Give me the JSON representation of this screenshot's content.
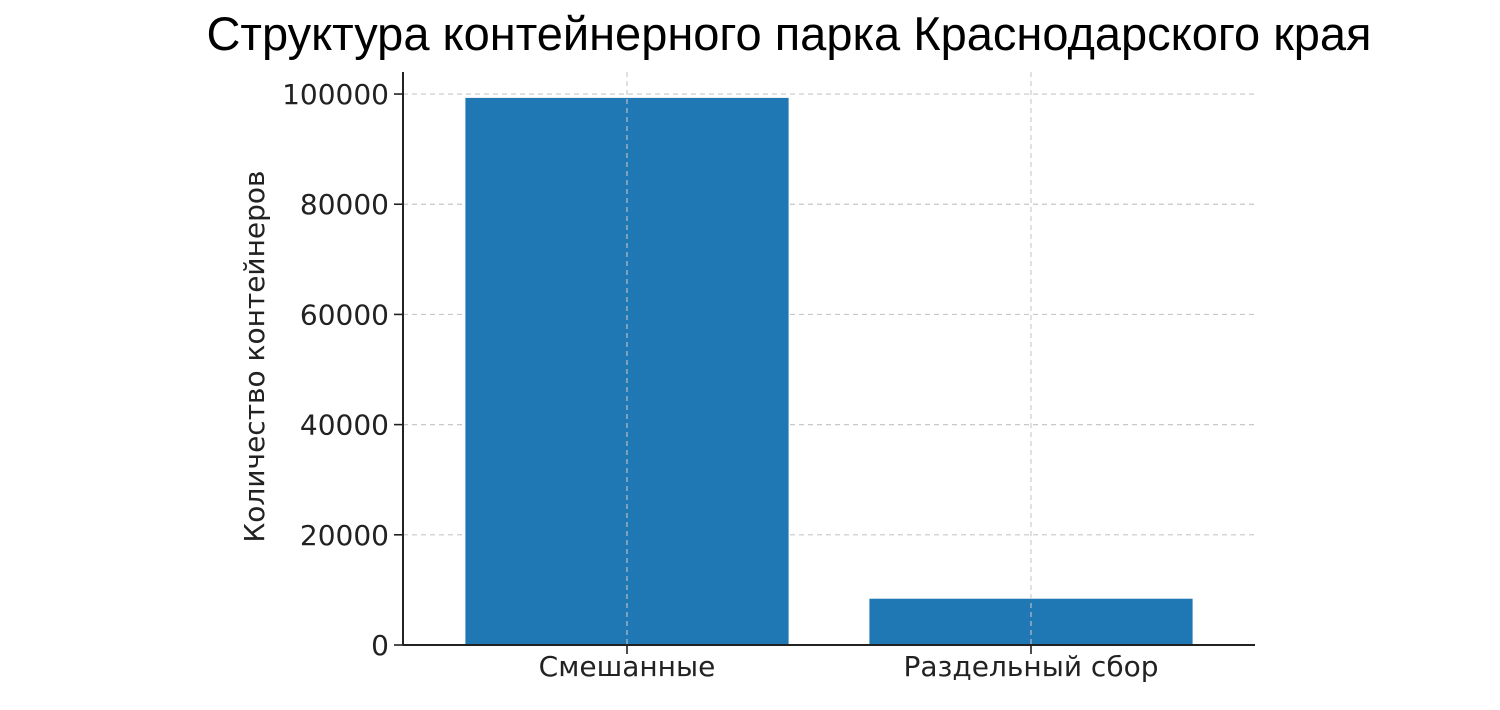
{
  "chart_data": {
    "type": "bar",
    "title": "Структура контейнерного парка Краснодарского края",
    "xlabel": "",
    "ylabel": "Количество контейнеров",
    "categories": [
      "Смешанные",
      "Раздельный сбор"
    ],
    "values": [
      99300,
      8400
    ],
    "ylim": [
      0,
      104000
    ],
    "yticks": [
      0,
      20000,
      40000,
      60000,
      80000,
      100000
    ],
    "ytick_labels": [
      "0",
      "20000",
      "40000",
      "60000",
      "80000",
      "100000"
    ],
    "grid": true,
    "legend": "none",
    "bar_color": "#1f77b4"
  }
}
